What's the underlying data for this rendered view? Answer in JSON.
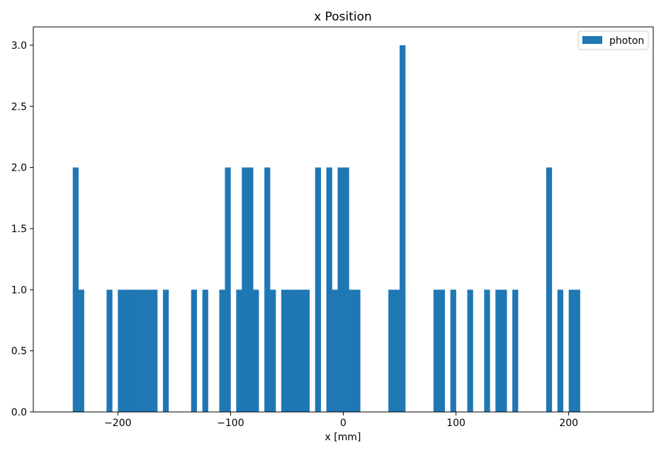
{
  "chart_data": {
    "type": "bar",
    "title": "x Position",
    "xlabel": "x [mm]",
    "ylabel": "",
    "xlim": [
      -275,
      275
    ],
    "ylim": [
      0,
      3.15
    ],
    "bin_width": 5,
    "xticks": [
      -200,
      -100,
      0,
      100,
      200
    ],
    "xtick_labels": [
      "−200",
      "−100",
      "0",
      "100",
      "200"
    ],
    "yticks": [
      0.0,
      0.5,
      1.0,
      1.5,
      2.0,
      2.5,
      3.0
    ],
    "ytick_labels": [
      "0.0",
      "0.5",
      "1.0",
      "1.5",
      "2.0",
      "2.5",
      "3.0"
    ],
    "grid": false,
    "legend": "top-right",
    "series": [
      {
        "name": "photon",
        "color": "#1f77b4",
        "bin_starts": [
          -240,
          -235,
          -210,
          -200,
          -195,
          -190,
          -185,
          -180,
          -175,
          -170,
          -160,
          -135,
          -125,
          -110,
          -105,
          -95,
          -90,
          -85,
          -80,
          -70,
          -65,
          -55,
          -50,
          -45,
          -40,
          -35,
          -25,
          -15,
          -10,
          -5,
          0,
          5,
          10,
          40,
          45,
          50,
          80,
          85,
          95,
          110,
          125,
          135,
          140,
          150,
          180,
          190,
          200,
          205
        ],
        "values": [
          2,
          1,
          1,
          1,
          1,
          1,
          1,
          1,
          1,
          1,
          1,
          1,
          1,
          1,
          2,
          1,
          2,
          2,
          1,
          2,
          1,
          1,
          1,
          1,
          1,
          1,
          2,
          2,
          1,
          2,
          2,
          1,
          1,
          1,
          1,
          3,
          1,
          1,
          1,
          1,
          1,
          1,
          1,
          1,
          2,
          1,
          1,
          1
        ]
      }
    ]
  }
}
